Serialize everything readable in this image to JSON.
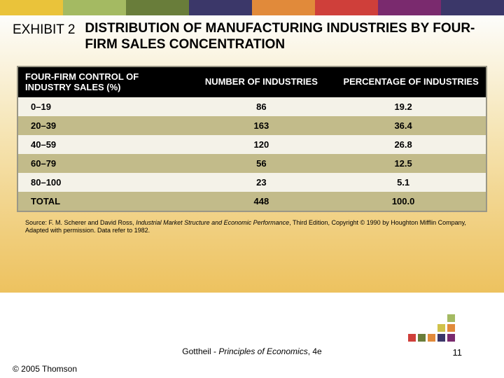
{
  "topbar_colors": [
    "#eac33a",
    "#a4ba62",
    "#697d3a",
    "#3b3769",
    "#e18a3a",
    "#cf3f3a",
    "#7a2a6e",
    "#3b3769"
  ],
  "exhibit_label": "EXHIBIT 2",
  "exhibit_title": "DISTRIBUTION OF MANUFACTURING INDUSTRIES BY FOUR-FIRM SALES CONCENTRATION",
  "table": {
    "columns": [
      "FOUR-FIRM CONTROL OF INDUSTRY SALES (%)",
      "NUMBER OF INDUSTRIES",
      "PERCENTAGE OF INDUSTRIES"
    ],
    "rows": [
      [
        "0–19",
        "86",
        "19.2"
      ],
      [
        "20–39",
        "163",
        "36.4"
      ],
      [
        "40–59",
        "120",
        "26.8"
      ],
      [
        "60–79",
        "56",
        "12.5"
      ],
      [
        "80–100",
        "23",
        "5.1"
      ],
      [
        "TOTAL",
        "448",
        "100.0"
      ]
    ],
    "row_alt_colors": [
      "#f4f2e8",
      "#c2bb8a"
    ],
    "header_bg": "#000000",
    "header_fg": "#ffffff"
  },
  "source": {
    "prefix": "Source: F. M. Scherer and David Ross, ",
    "book": "Industrial Market Structure and Economic Performance",
    "suffix": ", Third Edition, Copyright © 1990 by Houghton Mifflin Company, Adapted with permission. Data refer to 1982."
  },
  "footer": {
    "book_prefix": "Gottheil - ",
    "book_title": "Principles of Economics",
    "book_suffix": ", 4e",
    "page_number": "11",
    "copyright": "© 2005 Thomson"
  },
  "dot_colors": {
    "row1": [
      "#a4ba62"
    ],
    "row2": [
      "#d0c24a",
      "#e18a3a"
    ],
    "row3": [
      "#cf3f3a",
      "#697d3a",
      "#e18a3a",
      "#3b3769",
      "#7a2a6e"
    ]
  }
}
